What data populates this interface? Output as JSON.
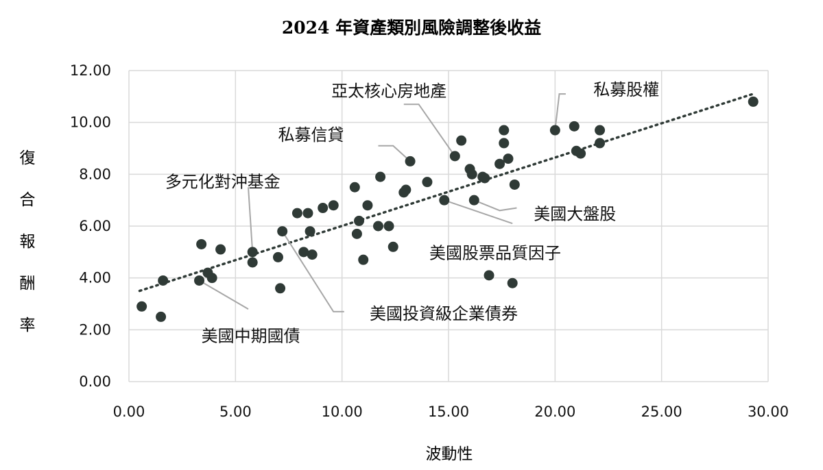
{
  "chart_data": {
    "type": "scatter",
    "title": "2024 年資產類別風險調整後收益",
    "xlabel": "波動性",
    "ylabel": "復合報酬率",
    "xlim": [
      0,
      30
    ],
    "ylim": [
      0,
      12
    ],
    "x_ticks": [
      "0.00",
      "5.00",
      "10.00",
      "15.00",
      "20.00",
      "25.00",
      "30.00"
    ],
    "y_ticks": [
      "0.00",
      "2.00",
      "4.00",
      "6.00",
      "8.00",
      "10.00",
      "12.00"
    ],
    "grid": true,
    "legend": "none",
    "trendline": {
      "style": "dotted",
      "from": [
        0.5,
        3.5
      ],
      "to": [
        29.3,
        11.1
      ]
    },
    "points": [
      {
        "x": 0.6,
        "y": 2.9
      },
      {
        "x": 1.5,
        "y": 2.5
      },
      {
        "x": 1.6,
        "y": 3.9
      },
      {
        "x": 3.3,
        "y": 3.9
      },
      {
        "x": 3.4,
        "y": 5.3
      },
      {
        "x": 3.7,
        "y": 4.2
      },
      {
        "x": 3.9,
        "y": 4.0
      },
      {
        "x": 4.3,
        "y": 5.1
      },
      {
        "x": 5.8,
        "y": 4.6
      },
      {
        "x": 5.8,
        "y": 5.0
      },
      {
        "x": 7.0,
        "y": 4.8
      },
      {
        "x": 7.1,
        "y": 3.6
      },
      {
        "x": 7.2,
        "y": 5.8
      },
      {
        "x": 7.9,
        "y": 6.5
      },
      {
        "x": 8.2,
        "y": 5.0
      },
      {
        "x": 8.4,
        "y": 6.5
      },
      {
        "x": 8.5,
        "y": 5.8
      },
      {
        "x": 8.6,
        "y": 4.9
      },
      {
        "x": 9.1,
        "y": 6.7
      },
      {
        "x": 9.6,
        "y": 6.8
      },
      {
        "x": 10.6,
        "y": 7.5
      },
      {
        "x": 10.7,
        "y": 5.7
      },
      {
        "x": 10.8,
        "y": 6.2
      },
      {
        "x": 11.0,
        "y": 4.7
      },
      {
        "x": 11.2,
        "y": 6.8
      },
      {
        "x": 11.7,
        "y": 6.0
      },
      {
        "x": 11.8,
        "y": 7.9
      },
      {
        "x": 12.2,
        "y": 6.0
      },
      {
        "x": 12.4,
        "y": 5.2
      },
      {
        "x": 12.9,
        "y": 7.3
      },
      {
        "x": 13.0,
        "y": 7.4
      },
      {
        "x": 13.2,
        "y": 8.5
      },
      {
        "x": 14.0,
        "y": 7.7
      },
      {
        "x": 14.8,
        "y": 7.0
      },
      {
        "x": 15.3,
        "y": 8.7
      },
      {
        "x": 15.6,
        "y": 9.3
      },
      {
        "x": 16.0,
        "y": 8.2
      },
      {
        "x": 16.1,
        "y": 8.0
      },
      {
        "x": 16.2,
        "y": 7.0
      },
      {
        "x": 16.6,
        "y": 7.9
      },
      {
        "x": 16.7,
        "y": 7.85
      },
      {
        "x": 16.9,
        "y": 4.1
      },
      {
        "x": 17.4,
        "y": 8.4
      },
      {
        "x": 17.6,
        "y": 9.2
      },
      {
        "x": 17.6,
        "y": 9.7
      },
      {
        "x": 17.8,
        "y": 8.6
      },
      {
        "x": 18.0,
        "y": 3.8
      },
      {
        "x": 18.1,
        "y": 7.6
      },
      {
        "x": 20.0,
        "y": 9.7
      },
      {
        "x": 20.9,
        "y": 9.85
      },
      {
        "x": 21.0,
        "y": 8.9
      },
      {
        "x": 21.2,
        "y": 8.8
      },
      {
        "x": 22.1,
        "y": 9.7
      },
      {
        "x": 22.1,
        "y": 9.2
      },
      {
        "x": 29.3,
        "y": 10.8
      }
    ],
    "annotations": [
      {
        "text": "亞太核心房地產",
        "label_at": [
          9.5,
          11.0
        ],
        "anchor": "start",
        "leader": [
          [
            12.9,
            10.7
          ],
          [
            13.6,
            10.7
          ],
          [
            15.3,
            8.7
          ]
        ]
      },
      {
        "text": "私募信貸",
        "label_at": [
          7.0,
          9.3
        ],
        "anchor": "start",
        "leader": [
          [
            11.7,
            9.1
          ],
          [
            12.4,
            9.1
          ],
          [
            13.2,
            8.5
          ]
        ]
      },
      {
        "text": "私募股權",
        "label_at": [
          21.8,
          11.05
        ],
        "anchor": "start",
        "leader": [
          [
            20.5,
            11.1
          ],
          [
            20.2,
            11.1
          ],
          [
            20.0,
            9.7
          ]
        ]
      },
      {
        "text": "多元化對沖基金",
        "label_at": [
          1.7,
          7.5
        ],
        "anchor": "start",
        "leader": [
          [
            5.6,
            7.5
          ],
          [
            5.8,
            5.0
          ]
        ]
      },
      {
        "text": "美國大盤股",
        "label_at": [
          19.0,
          6.25
        ],
        "anchor": "start",
        "leader": [
          [
            18.2,
            6.7
          ],
          [
            17.4,
            6.6
          ],
          [
            16.2,
            7.0
          ]
        ]
      },
      {
        "text": "美國股票品質因子",
        "label_at": [
          14.1,
          4.75
        ],
        "anchor": "start",
        "leader": [
          [
            18.0,
            6.1
          ],
          [
            14.8,
            7.0
          ]
        ]
      },
      {
        "text": "美國投資級企業債券",
        "label_at": [
          11.3,
          2.4
        ],
        "anchor": "start",
        "leader": [
          [
            10.1,
            2.7
          ],
          [
            9.6,
            2.7
          ],
          [
            7.2,
            5.8
          ]
        ]
      },
      {
        "text": "美國中期國債",
        "label_at": [
          3.4,
          1.55
        ],
        "anchor": "start",
        "leader": [
          [
            5.6,
            2.8
          ],
          [
            3.3,
            3.9
          ]
        ]
      }
    ]
  }
}
